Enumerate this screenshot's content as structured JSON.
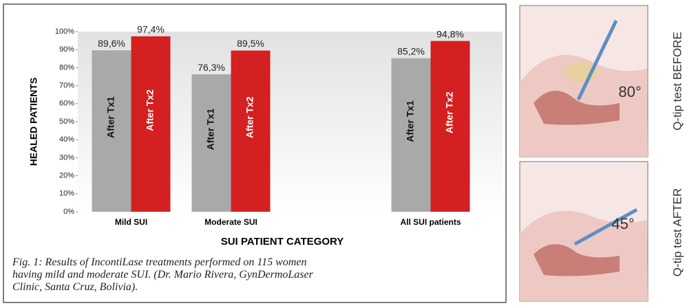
{
  "chart_data": {
    "type": "bar",
    "categories": [
      "Mild SUI",
      "Moderate SUI",
      null,
      "All SUI patients"
    ],
    "series": [
      {
        "name": "After Tx1",
        "color": "#a9a9a9",
        "values": [
          89.6,
          76.3,
          null,
          85.2
        ],
        "value_labels": [
          "89,6%",
          "76,3%",
          null,
          "85,2%"
        ]
      },
      {
        "name": "After Tx2",
        "color": "#d42020",
        "values": [
          97.4,
          89.5,
          null,
          94.8
        ],
        "value_labels": [
          "97,4%",
          "89,5%",
          null,
          "94,8%"
        ]
      }
    ],
    "ylim": [
      0,
      100
    ],
    "yticks": [
      {
        "value": 0,
        "label": "0%"
      },
      {
        "value": 10,
        "label": "10%"
      },
      {
        "value": 20,
        "label": "20%"
      },
      {
        "value": 30,
        "label": "30%"
      },
      {
        "value": 40,
        "label": "40%"
      },
      {
        "value": 50,
        "label": "50%"
      },
      {
        "value": 60,
        "label": "60%"
      },
      {
        "value": 70,
        "label": "70%"
      },
      {
        "value": 80,
        "label": "80%"
      },
      {
        "value": 90,
        "label": "90%"
      },
      {
        "value": 100,
        "label": "100%"
      }
    ],
    "ylabel": "HEALED PATIENTS",
    "xlabel": "SUI PATIENT CATEGORY",
    "grid": false
  },
  "caption": [
    "Fig. 1: Results of IncontiLase treatments performed on 115 women",
    "having mild and moderate SUI. (Dr. Mario Rivera, GynDermoLaser",
    "Clinic, Santa Cruz, Bolivia)."
  ],
  "panels": [
    {
      "angle": "80°",
      "label": "Q-tip test BEFORE"
    },
    {
      "angle": "45°",
      "label": "Q-tip test AFTER"
    }
  ]
}
